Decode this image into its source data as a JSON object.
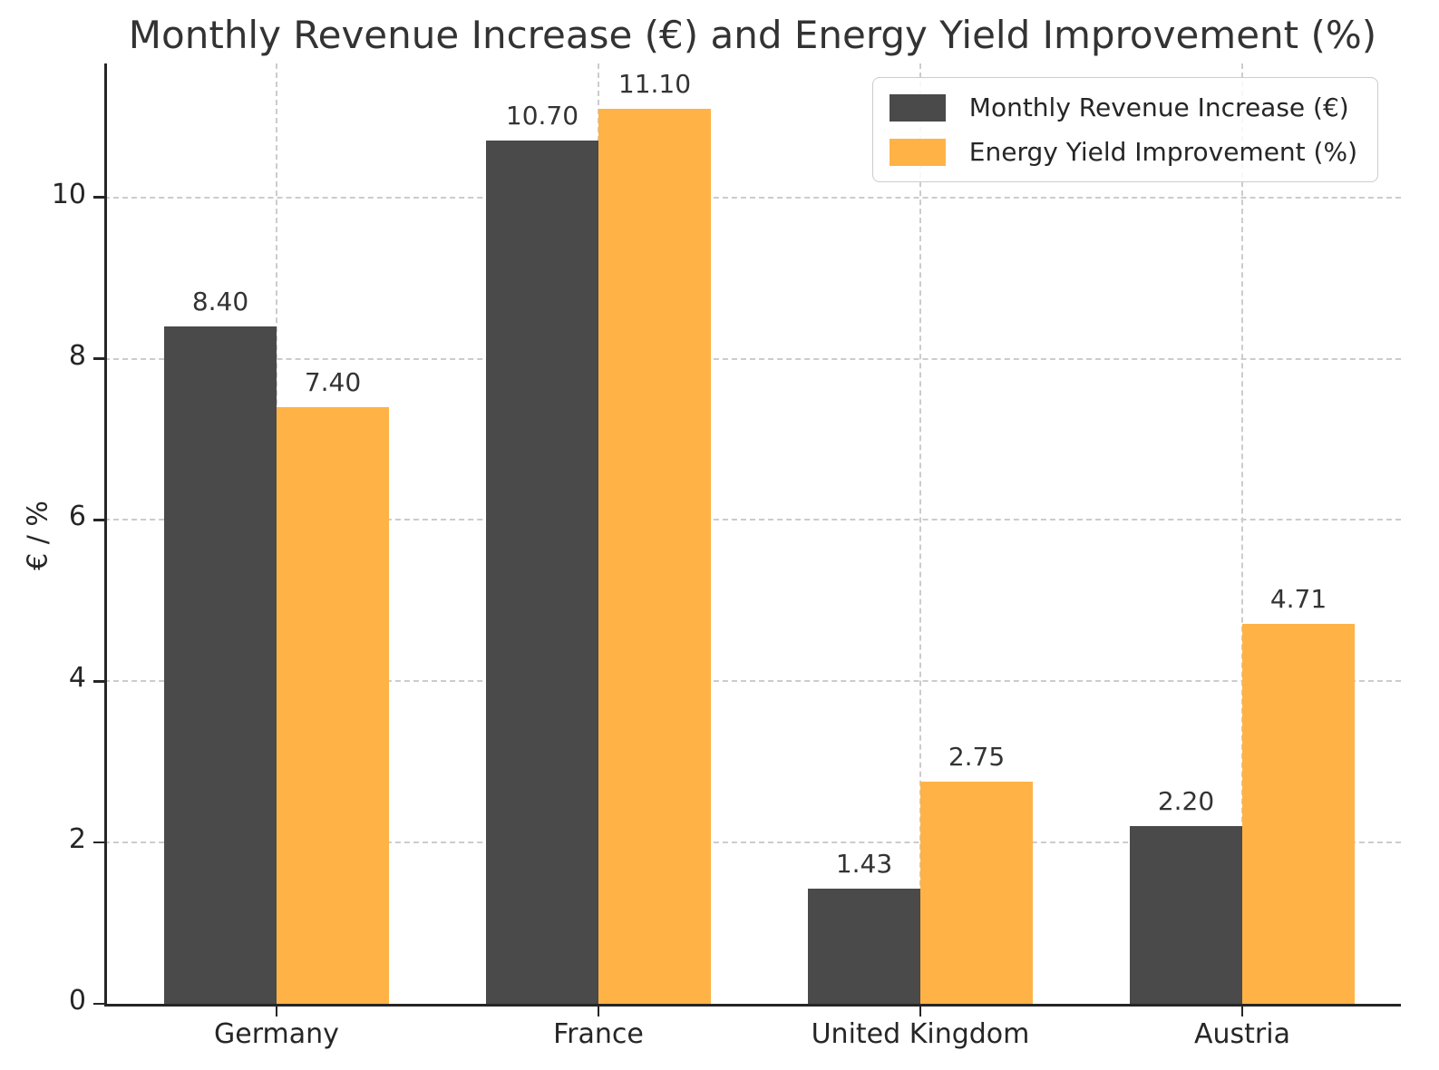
{
  "chart_data": {
    "type": "bar",
    "title": "Monthly Revenue Increase (€) and Energy Yield Improvement (%)",
    "xlabel": "",
    "ylabel": "€ / %",
    "categories": [
      "Germany",
      "France",
      "United Kingdom",
      "Austria"
    ],
    "series": [
      {
        "name": "Monthly Revenue Increase (€)",
        "color": "#4a4a4a",
        "values": [
          8.4,
          10.7,
          1.43,
          2.2
        ],
        "labels": [
          "8.40",
          "10.70",
          "1.43",
          "2.20"
        ]
      },
      {
        "name": "Energy Yield Improvement (%)",
        "color": "#ffb347",
        "values": [
          7.4,
          11.1,
          2.75,
          4.71
        ],
        "labels": [
          "7.40",
          "11.10",
          "2.75",
          "4.71"
        ]
      }
    ],
    "yticks": [
      0,
      2,
      4,
      6,
      8,
      10
    ],
    "ylim": [
      0,
      11.66
    ],
    "grid": "dashed horizontal and vertical gridlines",
    "grid_color": "#cccccc",
    "axis_color": "#262626",
    "legend_position": "upper right"
  }
}
